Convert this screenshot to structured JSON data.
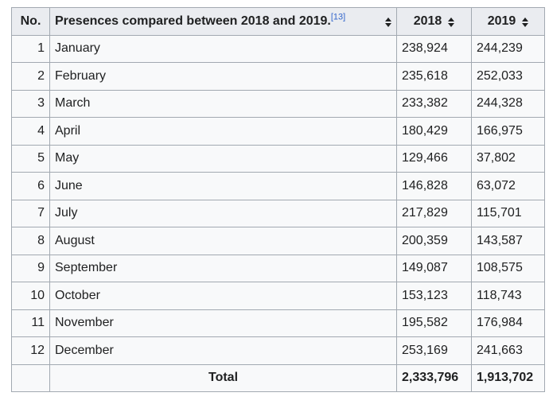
{
  "table": {
    "headers": {
      "no": "No.",
      "month": "Presences compared between 2018 and 2019.",
      "ref": "[13]",
      "y2018": "2018",
      "y2019": "2019"
    },
    "rows": [
      {
        "no": "1",
        "month": "January",
        "v2018": "238,924",
        "v2019": "244,239"
      },
      {
        "no": "2",
        "month": "February",
        "v2018": "235,618",
        "v2019": "252,033"
      },
      {
        "no": "3",
        "month": "March",
        "v2018": "233,382",
        "v2019": "244,328"
      },
      {
        "no": "4",
        "month": "April",
        "v2018": "180,429",
        "v2019": "166,975"
      },
      {
        "no": "5",
        "month": "May",
        "v2018": "129,466",
        "v2019": "37,802"
      },
      {
        "no": "6",
        "month": "June",
        "v2018": "146,828",
        "v2019": "63,072"
      },
      {
        "no": "7",
        "month": "July",
        "v2018": "217,829",
        "v2019": "115,701"
      },
      {
        "no": "8",
        "month": "August",
        "v2018": "200,359",
        "v2019": "143,587"
      },
      {
        "no": "9",
        "month": "September",
        "v2018": "149,087",
        "v2019": "108,575"
      },
      {
        "no": "10",
        "month": "October",
        "v2018": "153,123",
        "v2019": "118,743"
      },
      {
        "no": "11",
        "month": "November",
        "v2018": "195,582",
        "v2019": "176,984"
      },
      {
        "no": "12",
        "month": "December",
        "v2018": "253,169",
        "v2019": "241,663"
      }
    ],
    "total": {
      "label": "Total",
      "v2018": "2,333,796",
      "v2019": "1,913,702"
    }
  },
  "colors": {
    "header_bg": "#eaecf0",
    "cell_bg": "#f8f9fa",
    "border": "#a2a9b1",
    "link": "#3366cc"
  },
  "icons": {
    "sort": "sort-icon"
  }
}
